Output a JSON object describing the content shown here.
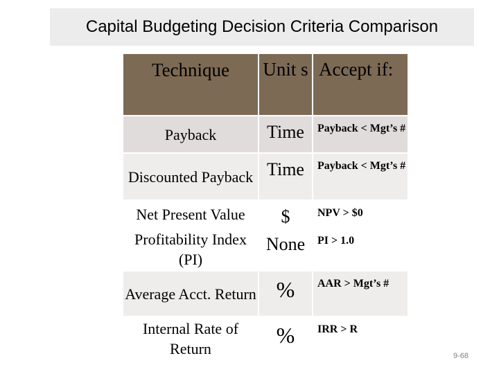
{
  "title": "Capital Budgeting Decision Criteria Comparison",
  "table": {
    "headers": {
      "technique": "Technique",
      "units": "Unit s",
      "accept": "Accept if:"
    },
    "rows": [
      {
        "technique": "Payback",
        "units": "Time",
        "accept": "Payback < Mgt’s #"
      },
      {
        "technique": "Discounted Payback",
        "units": "Time",
        "accept": "Payback < Mgt’s #"
      },
      {
        "technique": "Net Present Value",
        "units": "$",
        "accept": "NPV > $0"
      },
      {
        "technique": "Profitability Index (PI)",
        "units": "None",
        "accept": "PI > 1.0"
      },
      {
        "technique": "Average Acct. Return",
        "units": "%",
        "accept": "AAR > Mgt’s #"
      },
      {
        "technique": "Internal Rate of Return",
        "units": "%",
        "accept": "IRR > R"
      }
    ]
  },
  "page_number": "9-68",
  "colors": {
    "title_bg": "#ececec",
    "header_bg": "#7d6a55",
    "row_dark": "#e1dcdc",
    "row_light": "#efecec",
    "row_white": "#ffffff"
  }
}
